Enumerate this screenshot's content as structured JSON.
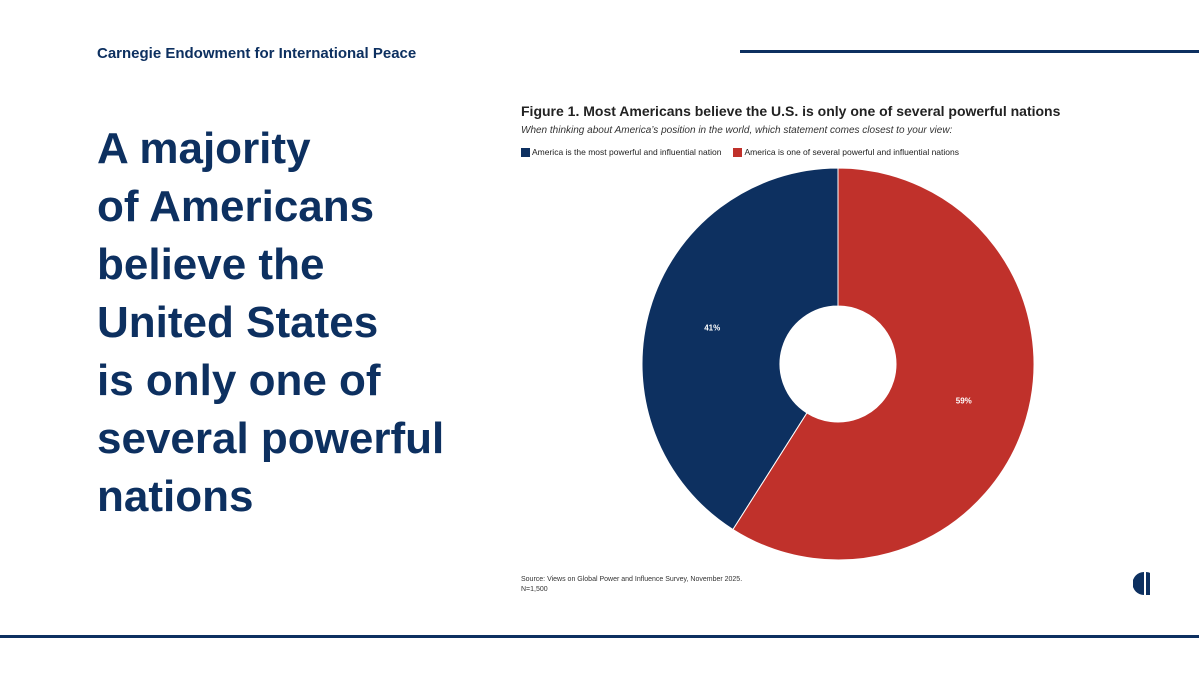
{
  "header": {
    "org_name": "Carnegie Endowment for International Peace"
  },
  "headline": {
    "lines": [
      "A majority",
      "of Americans",
      "believe the",
      "United States",
      "is only one of",
      "several powerful",
      "nations"
    ]
  },
  "colors": {
    "navy": "#0d3060",
    "red": "#c0312b",
    "background": "#ffffff"
  },
  "chart_data": {
    "type": "pie",
    "title": "Figure 1. Most Americans believe the U.S. is only one of several powerful nations",
    "subtitle": "When thinking about America’s position in the world, which statement comes closest to your view:",
    "donut": true,
    "legend_placement": "top-left",
    "series": [
      {
        "name": "America is the most powerful and influential nation",
        "value": 41,
        "label": "41%",
        "color": "#0d3060"
      },
      {
        "name": "America is one of several powerful and influential nations",
        "value": 59,
        "label": "59%",
        "color": "#c0312b"
      }
    ]
  },
  "footer": {
    "source": "Source: Views on Global Power and Influence Survey, November 2025.",
    "sample": "N=1,500"
  },
  "logo": {
    "icon": "carnegie-c-logo"
  }
}
